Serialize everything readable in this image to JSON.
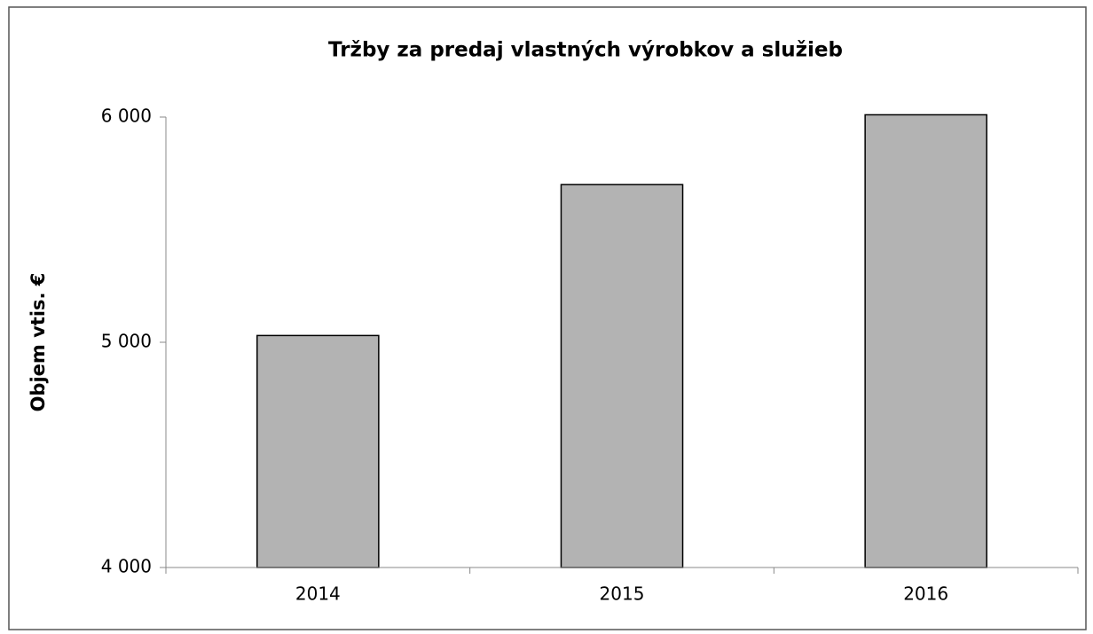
{
  "chart_data": {
    "type": "bar",
    "title": "Tržby za predaj vlastných výrobkov a služieb",
    "y_label": "Objem vtis. €",
    "categories": [
      "2014",
      "2015",
      "2016"
    ],
    "values": [
      5030,
      5700,
      6010
    ],
    "color": "#b3b3b3",
    "ylim": [
      4000,
      6000
    ],
    "yticks": [
      {
        "value": 4000,
        "label": "4 000"
      },
      {
        "value": 5000,
        "label": "5 000"
      },
      {
        "value": 6000,
        "label": "6 000"
      }
    ],
    "grid": false
  }
}
